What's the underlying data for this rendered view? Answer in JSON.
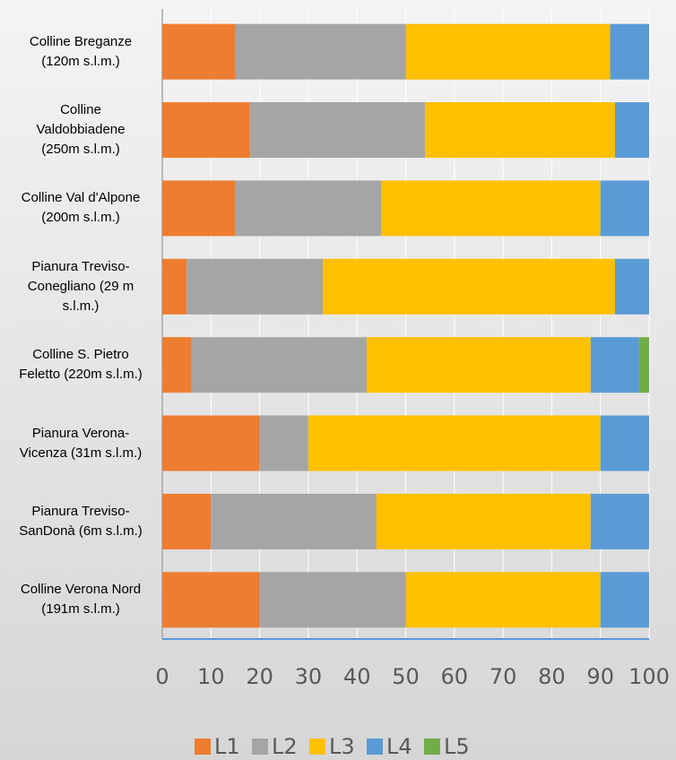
{
  "chart_data": {
    "type": "stacked_barh",
    "categories": [
      "Colline Breganze (120m s.l.m.)",
      "Colline Valdobbiadene (250m s.l.m.)",
      "Colline Val d'Alpone (200m s.l.m.)",
      "Pianura Treviso-Conegliano (29 m s.l.m.)",
      "Colline S. Pietro Feletto (220m s.l.m.)",
      "Pianura Verona-Vicenza (31m s.l.m.)",
      "Pianura Treviso-SanDonà (6m s.l.m.)",
      "Colline Verona Nord (191m s.l.m.)"
    ],
    "series": [
      {
        "name": "L1",
        "color": "#ed7d31",
        "values": [
          15,
          18,
          15,
          5,
          6,
          20,
          10,
          20
        ]
      },
      {
        "name": "L2",
        "color": "#a5a5a5",
        "values": [
          35,
          36,
          30,
          28,
          36,
          10,
          34,
          30
        ]
      },
      {
        "name": "L3",
        "color": "#ffc000",
        "values": [
          42,
          39,
          45,
          60,
          46,
          60,
          44,
          40
        ]
      },
      {
        "name": "L4",
        "color": "#5b9bd5",
        "values": [
          8,
          7,
          10,
          7,
          10,
          10,
          12,
          10
        ]
      },
      {
        "name": "L5",
        "color": "#70ad47",
        "values": [
          0,
          0,
          0,
          0,
          2,
          0,
          0,
          0
        ]
      }
    ],
    "xlim": [
      0,
      100
    ],
    "xticks": [
      0,
      10,
      20,
      30,
      40,
      50,
      60,
      70,
      80,
      90,
      100
    ],
    "grid": true,
    "legend": "bottom"
  }
}
